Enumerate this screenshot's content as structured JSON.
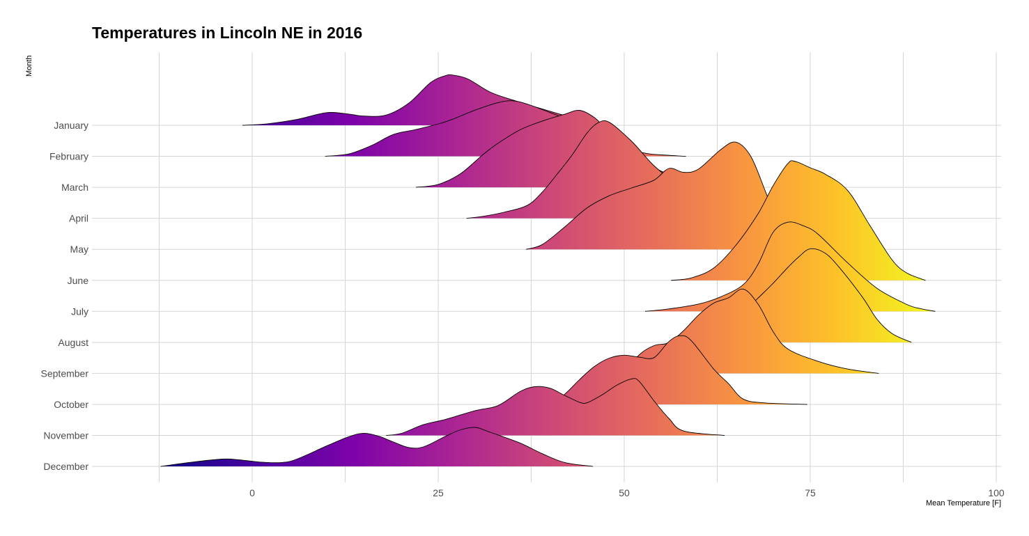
{
  "chart_data": {
    "type": "area",
    "subtype": "ridgeline",
    "title": "Temperatures in Lincoln NE in 2016",
    "xlabel": "Mean Temperature [F]",
    "ylabel": "Month",
    "xlim": [
      -12.5,
      100.5
    ],
    "x_ticks": [
      0,
      25,
      50,
      75,
      100
    ],
    "categories": [
      "January",
      "February",
      "March",
      "April",
      "May",
      "June",
      "July",
      "August",
      "September",
      "October",
      "November",
      "December"
    ],
    "grid": true,
    "legend": "none",
    "fill_colormap": "plasma",
    "fill_range": [
      -12,
      92
    ],
    "series": [
      {
        "month": "January",
        "points": [
          [
            -1.3,
            0
          ],
          [
            2,
            0.03
          ],
          [
            6,
            0.12
          ],
          [
            10,
            0.26
          ],
          [
            13,
            0.23
          ],
          [
            15,
            0.19
          ],
          [
            18,
            0.21
          ],
          [
            21,
            0.45
          ],
          [
            24,
            0.88
          ],
          [
            26,
            1.02
          ],
          [
            27,
            1.03
          ],
          [
            29,
            0.95
          ],
          [
            32,
            0.68
          ],
          [
            35,
            0.52
          ],
          [
            38,
            0.38
          ],
          [
            42,
            0.2
          ],
          [
            45,
            0.09
          ],
          [
            48.3,
            0
          ]
        ]
      },
      {
        "month": "February",
        "points": [
          [
            9.8,
            0
          ],
          [
            13,
            0.05
          ],
          [
            16,
            0.22
          ],
          [
            19,
            0.45
          ],
          [
            22,
            0.55
          ],
          [
            26,
            0.71
          ],
          [
            30,
            0.95
          ],
          [
            33,
            1.1
          ],
          [
            35,
            1.14
          ],
          [
            37,
            1.07
          ],
          [
            40,
            0.9
          ],
          [
            44,
            0.66
          ],
          [
            47,
            0.42
          ],
          [
            50,
            0.17
          ],
          [
            53,
            0.06
          ],
          [
            55,
            0.03
          ],
          [
            58.3,
            0
          ]
        ]
      },
      {
        "month": "March",
        "points": [
          [
            22,
            0
          ],
          [
            25,
            0.06
          ],
          [
            28,
            0.28
          ],
          [
            31,
            0.67
          ],
          [
            33,
            0.9
          ],
          [
            36,
            1.18
          ],
          [
            39,
            1.36
          ],
          [
            42,
            1.5
          ],
          [
            44,
            1.58
          ],
          [
            46,
            1.43
          ],
          [
            48,
            1.14
          ],
          [
            51,
            0.76
          ],
          [
            54,
            0.41
          ],
          [
            57,
            0.2
          ],
          [
            59,
            0.09
          ],
          [
            62.5,
            0
          ]
        ]
      },
      {
        "month": "April",
        "points": [
          [
            28.8,
            0
          ],
          [
            31,
            0.04
          ],
          [
            34,
            0.13
          ],
          [
            37,
            0.27
          ],
          [
            39,
            0.54
          ],
          [
            41,
            0.91
          ],
          [
            43,
            1.3
          ],
          [
            45,
            1.75
          ],
          [
            46.5,
            1.96
          ],
          [
            48,
            1.97
          ],
          [
            51,
            1.58
          ],
          [
            54,
            1.08
          ],
          [
            57,
            0.73
          ],
          [
            60,
            0.5
          ],
          [
            62,
            0.24
          ],
          [
            65,
            0.06
          ],
          [
            66.5,
            0
          ]
        ]
      },
      {
        "month": "May",
        "points": [
          [
            36.8,
            0
          ],
          [
            39,
            0.1
          ],
          [
            42,
            0.46
          ],
          [
            45,
            0.85
          ],
          [
            48,
            1.1
          ],
          [
            51,
            1.26
          ],
          [
            54,
            1.42
          ],
          [
            56,
            1.66
          ],
          [
            58,
            1.58
          ],
          [
            60,
            1.65
          ],
          [
            63,
            2.05
          ],
          [
            65,
            2.2
          ],
          [
            67,
            1.91
          ],
          [
            69,
            1.18
          ],
          [
            71,
            0.4
          ],
          [
            73.5,
            0
          ]
        ]
      },
      {
        "month": "June",
        "points": [
          [
            56.3,
            0
          ],
          [
            59,
            0.05
          ],
          [
            62,
            0.25
          ],
          [
            65,
            0.72
          ],
          [
            68,
            1.37
          ],
          [
            70,
            1.94
          ],
          [
            72,
            2.4
          ],
          [
            73,
            2.44
          ],
          [
            75,
            2.31
          ],
          [
            77,
            2.18
          ],
          [
            80,
            1.85
          ],
          [
            83,
            1.13
          ],
          [
            86,
            0.42
          ],
          [
            88,
            0.15
          ],
          [
            90.5,
            0
          ]
        ]
      },
      {
        "month": "July",
        "points": [
          [
            52.8,
            0
          ],
          [
            56,
            0.05
          ],
          [
            60,
            0.15
          ],
          [
            63,
            0.3
          ],
          [
            66,
            0.55
          ],
          [
            68,
            0.97
          ],
          [
            70,
            1.62
          ],
          [
            72,
            1.83
          ],
          [
            74,
            1.76
          ],
          [
            76,
            1.59
          ],
          [
            80,
            1.0
          ],
          [
            84,
            0.47
          ],
          [
            88,
            0.14
          ],
          [
            90,
            0.05
          ],
          [
            91.8,
            0
          ]
        ]
      },
      {
        "month": "August",
        "points": [
          [
            61.4,
            0
          ],
          [
            64,
            0.22
          ],
          [
            66,
            0.61
          ],
          [
            68,
            0.91
          ],
          [
            70,
            1.21
          ],
          [
            72,
            1.54
          ],
          [
            73.5,
            1.76
          ],
          [
            75,
            1.92
          ],
          [
            77,
            1.83
          ],
          [
            79,
            1.52
          ],
          [
            82,
            0.93
          ],
          [
            84,
            0.47
          ],
          [
            86,
            0.18
          ],
          [
            88.6,
            0
          ]
        ]
      },
      {
        "month": "September",
        "points": [
          [
            50,
            0
          ],
          [
            52,
            0.38
          ],
          [
            54,
            0.57
          ],
          [
            56,
            0.63
          ],
          [
            58,
            0.88
          ],
          [
            60,
            1.2
          ],
          [
            62,
            1.44
          ],
          [
            64,
            1.55
          ],
          [
            66,
            1.73
          ],
          [
            68,
            1.42
          ],
          [
            70,
            0.86
          ],
          [
            72,
            0.5
          ],
          [
            76,
            0.25
          ],
          [
            80,
            0.09
          ],
          [
            84.2,
            0
          ]
        ]
      },
      {
        "month": "October",
        "points": [
          [
            40,
            0
          ],
          [
            42,
            0.21
          ],
          [
            44,
            0.51
          ],
          [
            46,
            0.78
          ],
          [
            48,
            0.95
          ],
          [
            50,
            1.01
          ],
          [
            52,
            0.97
          ],
          [
            54,
            0.96
          ],
          [
            56,
            1.29
          ],
          [
            57.5,
            1.41
          ],
          [
            59,
            1.31
          ],
          [
            62,
            0.73
          ],
          [
            64,
            0.43
          ],
          [
            66,
            0.11
          ],
          [
            69,
            0.03
          ],
          [
            74.6,
            0
          ]
        ]
      },
      {
        "month": "November",
        "points": [
          [
            18,
            0
          ],
          [
            20,
            0.04
          ],
          [
            23,
            0.22
          ],
          [
            26,
            0.33
          ],
          [
            30,
            0.51
          ],
          [
            33,
            0.61
          ],
          [
            36,
            0.9
          ],
          [
            38,
            1.0
          ],
          [
            40,
            0.97
          ],
          [
            42,
            0.82
          ],
          [
            44,
            0.68
          ],
          [
            45,
            0.67
          ],
          [
            47,
            0.83
          ],
          [
            49,
            1.03
          ],
          [
            51,
            1.16
          ],
          [
            52,
            1.11
          ],
          [
            54,
            0.71
          ],
          [
            56,
            0.35
          ],
          [
            58,
            0.09
          ],
          [
            63.5,
            0
          ]
        ]
      },
      {
        "month": "December",
        "points": [
          [
            -12.3,
            0
          ],
          [
            -8,
            0.09
          ],
          [
            -4,
            0.15
          ],
          [
            -2,
            0.14
          ],
          [
            1,
            0.09
          ],
          [
            4,
            0.08
          ],
          [
            6,
            0.15
          ],
          [
            10,
            0.42
          ],
          [
            13,
            0.61
          ],
          [
            15,
            0.68
          ],
          [
            17,
            0.62
          ],
          [
            19,
            0.5
          ],
          [
            21,
            0.39
          ],
          [
            23,
            0.4
          ],
          [
            26,
            0.62
          ],
          [
            28,
            0.75
          ],
          [
            30,
            0.8
          ],
          [
            32,
            0.7
          ],
          [
            36,
            0.48
          ],
          [
            39,
            0.26
          ],
          [
            42,
            0.08
          ],
          [
            45.8,
            0
          ]
        ]
      }
    ]
  }
}
